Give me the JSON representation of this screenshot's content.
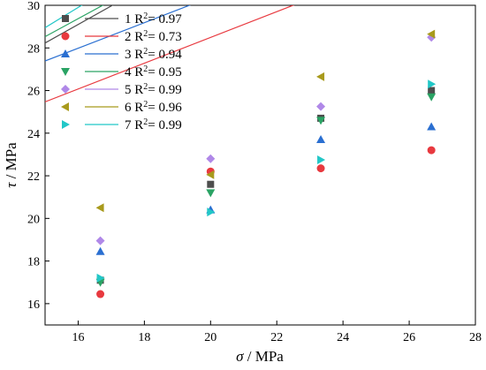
{
  "chart_data": {
    "type": "scatter",
    "title": "",
    "xlabel_symbol": "σ",
    "xlabel_unit": " / MPa",
    "ylabel_symbol": "τ",
    "ylabel_unit": " / MPa",
    "xlim": [
      15,
      28
    ],
    "ylim": [
      15,
      30
    ],
    "xticks": [
      16,
      18,
      20,
      22,
      24,
      26,
      28
    ],
    "yticks": [
      16,
      18,
      20,
      22,
      24,
      26,
      28,
      30
    ],
    "grid": false,
    "legend_position": "top-left",
    "x": [
      16.67,
      20.0,
      23.33,
      26.67
    ],
    "series": [
      {
        "name": "1",
        "r2_text": "0.97",
        "color": "#4d4d4d",
        "marker": "square",
        "values": [
          17.1,
          21.6,
          24.7,
          26.0
        ],
        "fit": [
          15.2,
          0.8688
        ]
      },
      {
        "name": "2",
        "r2_text": "0.73",
        "color": "#e8393f",
        "marker": "circle",
        "values": [
          16.45,
          22.2,
          22.35,
          23.2
        ],
        "fit": [
          16.4,
          0.6046
        ]
      },
      {
        "name": "3",
        "r2_text": "0.94",
        "color": "#2a6fd1",
        "marker": "triangle-up",
        "values": [
          18.45,
          20.4,
          23.7,
          24.3
        ],
        "fit": [
          18.4,
          0.5991
        ]
      },
      {
        "name": "4",
        "r2_text": "0.95",
        "color": "#2aa364",
        "marker": "triangle-down",
        "values": [
          17.0,
          21.2,
          24.6,
          25.7
        ],
        "fit": [
          15.85,
          0.8452
        ]
      },
      {
        "name": "5",
        "r2_text": "0.99",
        "color": "#b088e8",
        "marker": "diamond",
        "values": [
          18.95,
          22.8,
          25.25,
          28.5
        ],
        "fit": [
          17.25,
          0.9339
        ]
      },
      {
        "name": "6",
        "r2_text": "0.96",
        "color": "#a89a1c",
        "marker": "triangle-left",
        "values": [
          20.5,
          22.05,
          26.65,
          28.65
        ],
        "fit": [
          18.9,
          0.8438
        ]
      },
      {
        "name": "7",
        "r2_text": "0.99",
        "color": "#22c7c7",
        "marker": "triangle-right",
        "values": [
          17.2,
          20.3,
          22.75,
          26.3
        ],
        "fit": [
          14.7,
          0.95
        ]
      }
    ]
  }
}
